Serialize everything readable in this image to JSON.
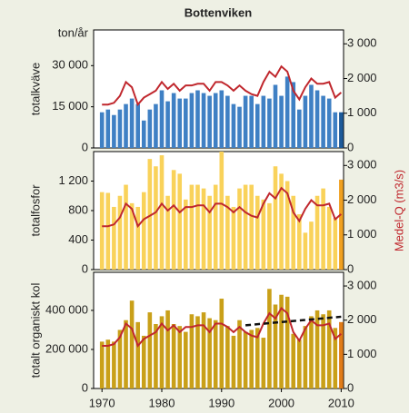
{
  "chart_data": [
    {
      "type": "bar",
      "title": "Bottenviken",
      "unit": "ton/år",
      "ylabel": "totalkväve",
      "x": [
        1970,
        1971,
        1972,
        1973,
        1974,
        1975,
        1976,
        1977,
        1978,
        1979,
        1980,
        1981,
        1982,
        1983,
        1984,
        1985,
        1986,
        1987,
        1988,
        1989,
        1990,
        1991,
        1992,
        1993,
        1994,
        1995,
        1996,
        1997,
        1998,
        1999,
        2000,
        2001,
        2002,
        2003,
        2004,
        2005,
        2006,
        2007,
        2008,
        2009,
        2010
      ],
      "xlim": [
        1968.6,
        2010.4
      ],
      "ylim": [
        0,
        43000
      ],
      "y2lim": [
        0,
        3400
      ],
      "yticks": [
        0,
        {
          "value": 15000,
          "label": "15 000"
        },
        {
          "value": 30000,
          "label": "30 000"
        }
      ],
      "y2ticks": [
        0,
        {
          "value": 1000,
          "label": "1 000"
        },
        {
          "value": 2000,
          "label": "2 000"
        },
        {
          "value": 3000,
          "label": "3 000"
        }
      ],
      "last_color": "#1d5a9a",
      "series": [
        {
          "color": "#3f80c4",
          "values": [
            13000,
            14000,
            12000,
            14000,
            16000,
            18000,
            16000,
            10000,
            14000,
            16000,
            21000,
            17000,
            20000,
            18000,
            18000,
            20000,
            21000,
            20000,
            19000,
            20000,
            21000,
            19000,
            16000,
            15000,
            19000,
            19000,
            16000,
            19000,
            18000,
            23000,
            19000,
            26000,
            24000,
            14000,
            19000,
            23000,
            21000,
            19000,
            18000,
            13000,
            13000
          ]
        },
        {
          "type": "line",
          "axis": "y2",
          "color": "#c0272d",
          "values": [
            1250,
            1250,
            1300,
            1500,
            1900,
            1750,
            1250,
            1450,
            1550,
            1650,
            1900,
            1700,
            1850,
            1650,
            1800,
            1800,
            1850,
            1850,
            1650,
            1900,
            1900,
            1800,
            1650,
            1800,
            1650,
            1550,
            1500,
            1900,
            2200,
            2050,
            2350,
            2200,
            1650,
            1400,
            1750,
            2000,
            1850,
            1850,
            1900,
            1450,
            1600
          ]
        }
      ]
    },
    {
      "type": "bar",
      "ylabel": "totalfosfor",
      "y2label": "Medel-Q (m3/s)",
      "x": [
        1970,
        1971,
        1972,
        1973,
        1974,
        1975,
        1976,
        1977,
        1978,
        1979,
        1980,
        1981,
        1982,
        1983,
        1984,
        1985,
        1986,
        1987,
        1988,
        1989,
        1990,
        1991,
        1992,
        1993,
        1994,
        1995,
        1996,
        1997,
        1998,
        1999,
        2000,
        2001,
        2002,
        2003,
        2004,
        2005,
        2006,
        2007,
        2008,
        2009,
        2010
      ],
      "xlim": [
        1968.6,
        2010.4
      ],
      "ylim": [
        0,
        1600
      ],
      "y2lim": [
        0,
        3400
      ],
      "yticks": [
        0,
        400,
        800,
        {
          "value": 1200,
          "label": "1 200"
        }
      ],
      "y2ticks": [
        0,
        {
          "value": 1000,
          "label": "1 000"
        },
        {
          "value": 2000,
          "label": "2 000"
        },
        {
          "value": 3000,
          "label": "3 000"
        }
      ],
      "last_color": "#f0a020",
      "series": [
        {
          "color": "#f9d25a",
          "values": [
            1050,
            1040,
            850,
            1000,
            1150,
            900,
            850,
            1050,
            1500,
            1400,
            1550,
            1000,
            1350,
            1300,
            950,
            1150,
            1150,
            1100,
            1000,
            1150,
            1600,
            1000,
            850,
            1100,
            1150,
            1150,
            1000,
            950,
            900,
            1400,
            1300,
            1200,
            1000,
            750,
            500,
            650,
            1000,
            1100,
            850,
            700,
            1220
          ]
        },
        {
          "type": "line",
          "axis": "y2",
          "color": "#c0272d",
          "values": [
            1250,
            1250,
            1300,
            1500,
            1900,
            1750,
            1250,
            1450,
            1550,
            1650,
            1900,
            1700,
            1850,
            1650,
            1800,
            1800,
            1850,
            1850,
            1650,
            1900,
            1900,
            1800,
            1650,
            1800,
            1650,
            1550,
            1500,
            1900,
            2200,
            2050,
            2350,
            2200,
            1650,
            1400,
            1750,
            2000,
            1850,
            1850,
            1900,
            1450,
            1600
          ]
        }
      ]
    },
    {
      "type": "bar",
      "ylabel": "totalt organiskt kol",
      "x": [
        1970,
        1971,
        1972,
        1973,
        1974,
        1975,
        1976,
        1977,
        1978,
        1979,
        1980,
        1981,
        1982,
        1983,
        1984,
        1985,
        1986,
        1987,
        1988,
        1989,
        1990,
        1991,
        1992,
        1993,
        1994,
        1995,
        1996,
        1997,
        1998,
        1999,
        2000,
        2001,
        2002,
        2003,
        2004,
        2005,
        2006,
        2007,
        2008,
        2009,
        2010
      ],
      "xlim": [
        1968.6,
        2010.4
      ],
      "ylim": [
        0,
        595000
      ],
      "y2lim": [
        0,
        3400
      ],
      "xticks": [
        1970,
        1980,
        1990,
        2000,
        2010
      ],
      "yticks": [
        0,
        {
          "value": 200000,
          "label": "200 000"
        },
        {
          "value": 400000,
          "label": "400 000"
        }
      ],
      "y2ticks": [
        0,
        {
          "value": 1000,
          "label": "1 000"
        },
        {
          "value": 2000,
          "label": "2 000"
        },
        {
          "value": 3000,
          "label": "3 000"
        }
      ],
      "last_color": "#e07b18",
      "series": [
        {
          "color": "#c9a019",
          "values": [
            240000,
            250000,
            240000,
            300000,
            350000,
            450000,
            340000,
            270000,
            390000,
            330000,
            370000,
            400000,
            330000,
            320000,
            290000,
            380000,
            370000,
            390000,
            360000,
            350000,
            460000,
            320000,
            270000,
            350000,
            290000,
            300000,
            310000,
            260000,
            510000,
            430000,
            480000,
            470000,
            280000,
            250000,
            320000,
            370000,
            400000,
            380000,
            400000,
            310000,
            340000
          ]
        },
        {
          "type": "line",
          "axis": "y2",
          "color": "#c0272d",
          "values": [
            1250,
            1250,
            1300,
            1500,
            1900,
            1750,
            1250,
            1450,
            1550,
            1650,
            1900,
            1700,
            1850,
            1650,
            1800,
            1800,
            1850,
            1850,
            1650,
            1900,
            1900,
            1800,
            1650,
            1800,
            1650,
            1550,
            1500,
            1900,
            2200,
            2050,
            2350,
            2200,
            1650,
            1400,
            1750,
            2000,
            1850,
            1850,
            1900,
            1450,
            1600
          ]
        }
      ],
      "trend": {
        "x": [
          1994,
          2010
        ],
        "values": [
          1850,
          2100
        ],
        "axis": "y2",
        "color": "#111111"
      }
    }
  ]
}
